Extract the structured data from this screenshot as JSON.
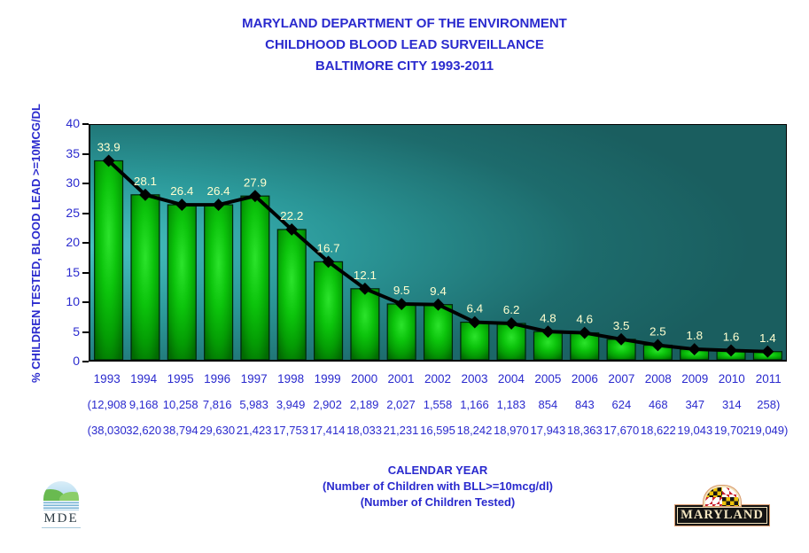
{
  "title": {
    "line1": "MARYLAND DEPARTMENT OF THE ENVIRONMENT",
    "line2": "CHILDHOOD BLOOD LEAD SURVEILLANCE",
    "line3": "BALTIMORE CITY 1993-2011"
  },
  "y_axis_label": "% CHILDREN TESTED, BLOOD LEAD >=10MCG/DL",
  "caption": {
    "line1": "CALENDAR YEAR",
    "line2": "(Number of Children with BLL>=10mcg/dl)",
    "line3": "(Number of Children Tested)"
  },
  "logos": {
    "mde_text": "MDE",
    "maryland_text": "MARYLAND"
  },
  "chart_data": {
    "type": "bar",
    "line_overlay": true,
    "title": "MARYLAND DEPARTMENT OF THE ENVIRONMENT - CHILDHOOD BLOOD LEAD SURVEILLANCE - BALTIMORE CITY 1993-2011",
    "xlabel": "CALENDAR YEAR",
    "ylabel": "% CHILDREN TESTED, BLOOD LEAD >=10MCG/DL",
    "categories": [
      "1993",
      "1994",
      "1995",
      "1996",
      "1997",
      "1998",
      "1999",
      "2000",
      "2001",
      "2002",
      "2003",
      "2004",
      "2005",
      "2006",
      "2007",
      "2008",
      "2009",
      "2010",
      "2011"
    ],
    "values": [
      33.9,
      28.1,
      26.4,
      26.4,
      27.9,
      22.2,
      16.7,
      12.1,
      9.5,
      9.4,
      6.4,
      6.2,
      4.8,
      4.6,
      3.5,
      2.5,
      1.8,
      1.6,
      1.4
    ],
    "children_with_bll": [
      "12,908",
      "9,168",
      "10,258",
      "7,816",
      "5,983",
      "3,949",
      "2,902",
      "2,189",
      "2,027",
      "1,558",
      "1,166",
      "1,183",
      "854",
      "843",
      "624",
      "468",
      "347",
      "314",
      "258"
    ],
    "children_tested": [
      "38,030",
      "32,620",
      "38,794",
      "29,630",
      "21,423",
      "17,753",
      "17,414",
      "18,033",
      "21,231",
      "16,595",
      "18,242",
      "18,970",
      "17,943",
      "18,363",
      "17,670",
      "18,622",
      "19,043",
      "19,702",
      "19,049"
    ],
    "ylim": [
      0,
      40
    ],
    "yticks": [
      0,
      5,
      10,
      15,
      20,
      25,
      30,
      35,
      40
    ],
    "grid": false,
    "legend": "none",
    "axis_text_color": "#2a2ace",
    "value_label_color": "#ffffcf",
    "line_color": "#000000",
    "bar_gradient": [
      "#2ce42c",
      "#0cc40c",
      "#049c04",
      "#026a02"
    ],
    "bar_outline": "#00230c",
    "plot_bg": [
      "#46c1c1",
      "#2b9899",
      "#1d6b6c",
      "#1a5e5f"
    ]
  }
}
